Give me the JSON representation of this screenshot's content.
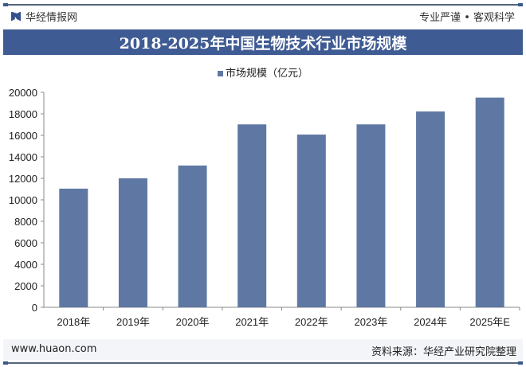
{
  "header": {
    "brand": "华经情报网",
    "slogan": "专业严谨 • 客观科学"
  },
  "footer": {
    "url": "www.huaon.com",
    "source": "资料来源：华经产业研究院整理"
  },
  "colors": {
    "bar": "#5f78a3",
    "title_band": "#3f5b93"
  },
  "chart_data": {
    "type": "bar",
    "title": "2018-2025年中国生物技术行业市场规模",
    "series": [
      {
        "name": "市场规模（亿元）",
        "values": [
          11040,
          12000,
          13190,
          17020,
          16070,
          17020,
          18220,
          19510
        ]
      }
    ],
    "categories": [
      "2018年",
      "2019年",
      "2020年",
      "2021年",
      "2022年",
      "2023年",
      "2024年",
      "2025年E"
    ],
    "yticks": [
      0,
      2000,
      4000,
      6000,
      8000,
      10000,
      12000,
      14000,
      16000,
      18000,
      20000
    ],
    "ylim": [
      0,
      20000
    ],
    "xlabel": "",
    "ylabel": "",
    "grid": false,
    "legend": "top-center"
  }
}
